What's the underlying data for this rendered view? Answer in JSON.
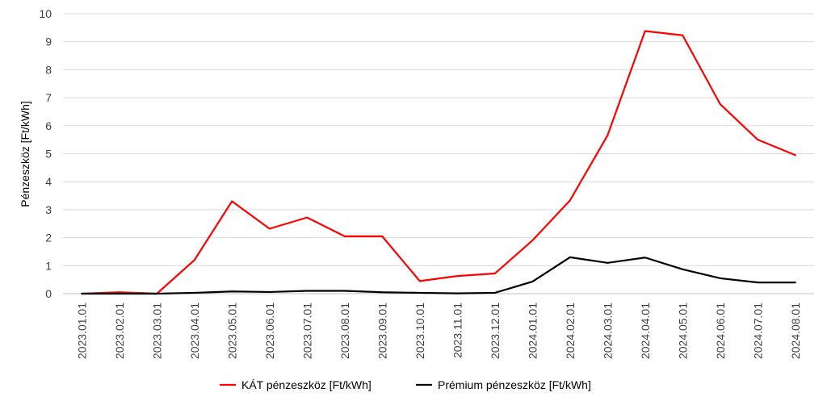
{
  "chart_data": {
    "type": "line",
    "title": "",
    "xlabel": "",
    "ylabel": "Pénzeszköz [Ft/kWh]",
    "ylim": [
      0,
      10
    ],
    "yticks": [
      "0",
      "1",
      "2",
      "3",
      "4",
      "5",
      "6",
      "7",
      "8",
      "9",
      "10"
    ],
    "grid": true,
    "legend_position": "bottom",
    "categories": [
      "2023.01.01",
      "2023.02.01",
      "2023.03.01",
      "2023.04.01",
      "2023.05.01",
      "2023.06.01",
      "2023.07.01",
      "2023.08.01",
      "2023.09.01",
      "2023.10.01",
      "2023.11.01",
      "2023.12.01",
      "2024.01.01",
      "2024.02.01",
      "2024.03.01",
      "2024.04.01",
      "2024.05.01",
      "2024.06.01",
      "2024.07.01",
      "2024.08.01"
    ],
    "series": [
      {
        "name": "KÁT pénzeszköz [Ft/kWh]",
        "color": "#ff0000",
        "values": [
          0,
          0.05,
          0,
          1.2,
          3.3,
          2.32,
          2.72,
          2.05,
          2.05,
          0.45,
          0.63,
          0.72,
          1.9,
          3.33,
          5.65,
          9.38,
          9.23,
          6.77,
          5.5,
          4.95
        ]
      },
      {
        "name": "Prémium pénzeszköz [Ft/kWh]",
        "color": "#000000",
        "values": [
          0,
          0,
          0,
          0.03,
          0.08,
          0.06,
          0.1,
          0.1,
          0.05,
          0.03,
          0.01,
          0.03,
          0.43,
          1.3,
          1.1,
          1.29,
          0.87,
          0.55,
          0.4,
          0.4
        ]
      }
    ]
  }
}
